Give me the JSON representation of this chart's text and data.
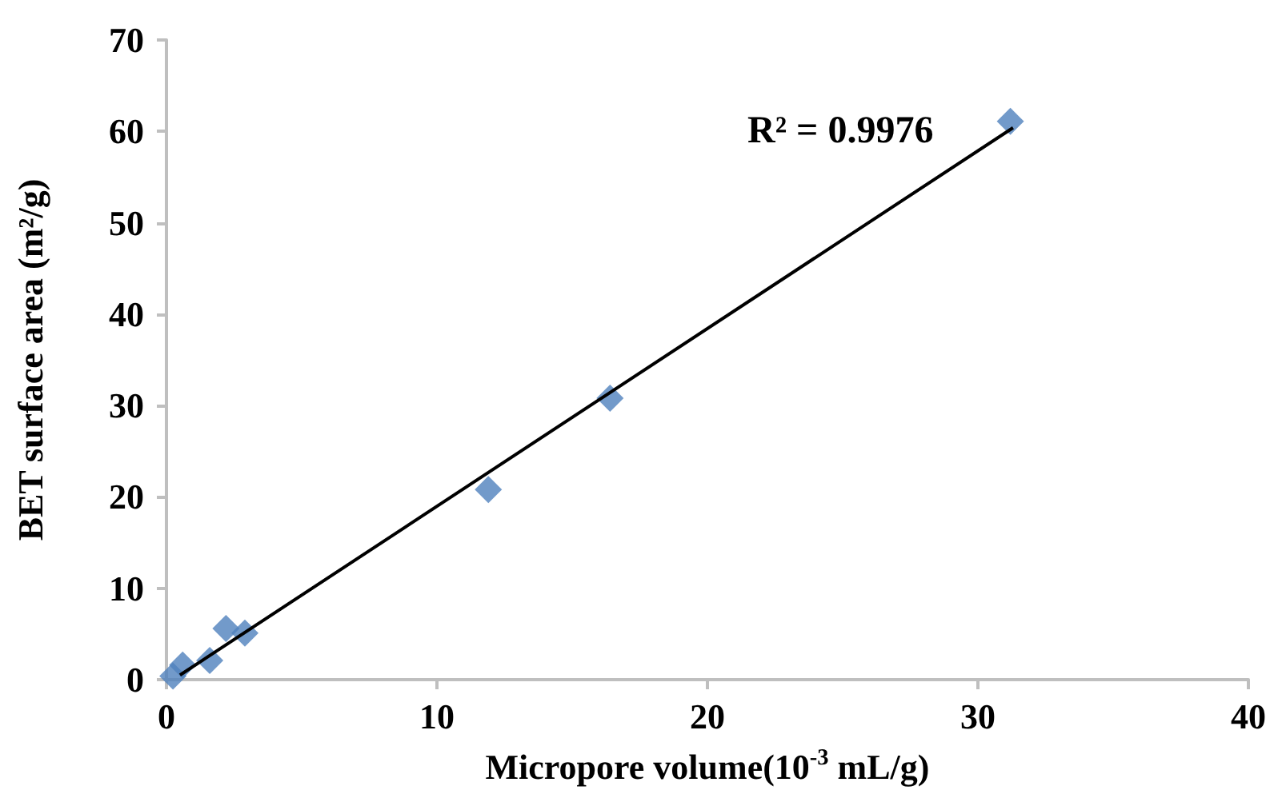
{
  "chart_data": {
    "type": "scatter",
    "xlabel": "Micropore volume(10$^{-3}$ mL/g)",
    "ylabel": "BET surface area (m²/g)",
    "series": [
      {
        "color": "#4f81bd",
        "marker": "diamond",
        "x": [
          0.24,
          0.6,
          1.6,
          2.2,
          2.9,
          11.9,
          16.4,
          31.2
        ],
        "values": [
          0.4,
          1.6,
          2.1,
          5.6,
          5.1,
          20.8,
          30.8,
          61.1
        ]
      },
      {
        "type": "line",
        "color": "#000000",
        "marker": "none",
        "line_style": "solid",
        "x": [
          0.5,
          31.3
        ],
        "values": [
          0.5,
          60.4
        ]
      }
    ],
    "annotations": [
      "R² = 0.9976"
    ],
    "xlim": [
      0,
      40
    ],
    "xticks": [
      0,
      10,
      20,
      30,
      40
    ],
    "ylim": [
      0,
      70
    ],
    "yticks": [
      0,
      10,
      20,
      30,
      40,
      50,
      60,
      70
    ],
    "grid": false
  }
}
